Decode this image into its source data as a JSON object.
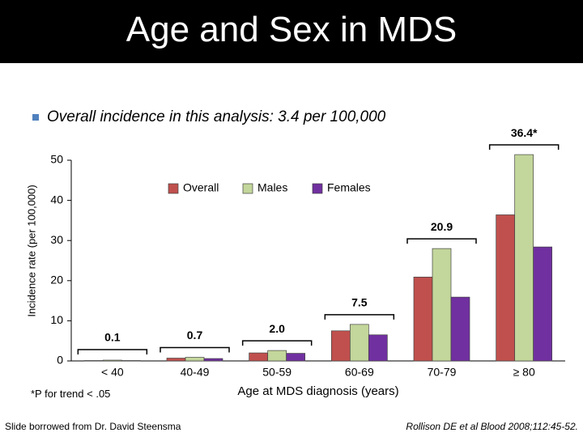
{
  "chart_data": {
    "type": "bar",
    "title": "Age and Sex in MDS",
    "subtitle": "Overall incidence in this analysis: 3.4 per 100,000",
    "y_label": "Incidence rate (per 100,000)",
    "x_label": "Age at MDS diagnosis (years)",
    "footnote": "*P for trend < .05",
    "credit": "Slide borrowed from Dr. David Steensma",
    "reference": "Rollison DE et al Blood 2008;112:45-52.",
    "categories": [
      "< 40",
      "40-49",
      "50-59",
      "60-69",
      "70-79",
      "≥ 80"
    ],
    "series": [
      {
        "name": "Overall",
        "color": "#c0504d",
        "values": [
          0.1,
          0.7,
          2.0,
          7.5,
          20.9,
          36.4
        ],
        "value_labels": [
          "0.1",
          "0.7",
          "2.0",
          "7.5",
          "20.9",
          "36.4*"
        ]
      },
      {
        "name": "Males",
        "color": "#c3d69b",
        "values": [
          0.2,
          0.9,
          2.6,
          9.1,
          28.0,
          51.4
        ]
      },
      {
        "name": "Females",
        "color": "#7030a0",
        "values": [
          0.1,
          0.6,
          1.9,
          6.5,
          15.9,
          28.4
        ]
      }
    ],
    "ylim": [
      0,
      50
    ],
    "yticks": [
      0,
      10,
      20,
      30,
      40,
      50
    ],
    "grid": false
  }
}
